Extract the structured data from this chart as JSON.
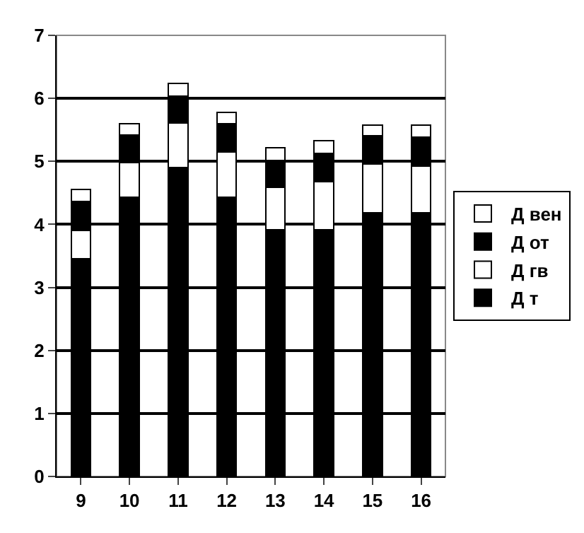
{
  "chart_data": {
    "type": "bar",
    "stacked": true,
    "categories": [
      "9",
      "10",
      "11",
      "12",
      "13",
      "14",
      "15",
      "16"
    ],
    "series": [
      {
        "name": "Д т",
        "color": "#000000",
        "values": [
          3.45,
          4.43,
          4.9,
          4.43,
          3.92,
          3.92,
          4.18,
          4.18
        ]
      },
      {
        "name": "Д гв",
        "color": "#ffffff",
        "values": [
          0.45,
          0.55,
          0.71,
          0.72,
          0.67,
          0.76,
          0.78,
          0.75
        ]
      },
      {
        "name": "Д от",
        "color": "#000000",
        "values": [
          0.46,
          0.44,
          0.43,
          0.45,
          0.42,
          0.45,
          0.45,
          0.45
        ]
      },
      {
        "name": "Д вен",
        "color": "#ffffff",
        "values": [
          0.2,
          0.18,
          0.2,
          0.18,
          0.21,
          0.2,
          0.17,
          0.2
        ]
      }
    ],
    "ylim": [
      0,
      7
    ],
    "yticks": [
      0,
      1,
      2,
      3,
      4,
      5,
      6,
      7
    ],
    "grid": "y",
    "legend": "right"
  }
}
